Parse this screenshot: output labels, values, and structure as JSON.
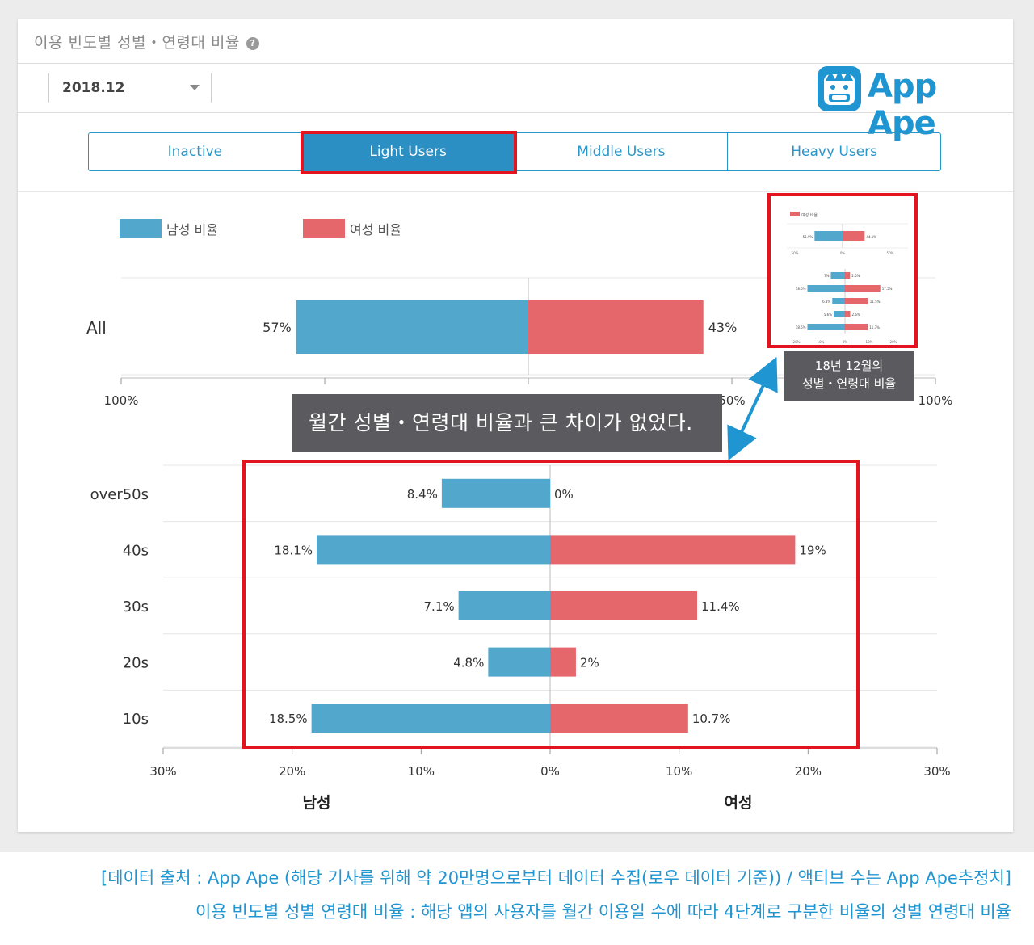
{
  "header": {
    "title": "이용 빈도별 성별・연령대 비율",
    "help_icon": "question-icon"
  },
  "toolbar": {
    "month": "2018.12"
  },
  "logo": {
    "text": "App Ape",
    "color": "#1f95d2"
  },
  "tabs": [
    "Inactive",
    "Light Users",
    "Middle Users",
    "Heavy Users"
  ],
  "active_tab": "Light Users",
  "legend": {
    "male": "남성 비율",
    "female": "여성 비율"
  },
  "colors": {
    "male": "#52a7cc",
    "female": "#e5676b",
    "highlight": "#e3141f",
    "accent": "#1f95d2"
  },
  "annotations": {
    "inset_label": [
      "18년 12월의",
      "성별・연령대 비율"
    ],
    "callout": "월간 성별・연령대 비율과 큰 차이가 없었다."
  },
  "chart_data": [
    {
      "type": "bar",
      "orientation": "horizontal-diverging",
      "categories": [
        "All"
      ],
      "series": [
        {
          "name": "남성 비율",
          "values": [
            57
          ],
          "labels": [
            "57%"
          ]
        },
        {
          "name": "여성 비율",
          "values": [
            43
          ],
          "labels": [
            "43%"
          ]
        }
      ],
      "xlim": [
        -100,
        100
      ],
      "ticks": [
        "100%",
        "50%",
        "0%",
        "50%",
        "100%"
      ]
    },
    {
      "type": "bar",
      "orientation": "horizontal-diverging",
      "categories": [
        "over50s",
        "40s",
        "30s",
        "20s",
        "10s"
      ],
      "series": [
        {
          "name": "남성",
          "values": [
            8.4,
            18.1,
            7.1,
            4.8,
            18.5
          ],
          "labels": [
            "8.4%",
            "18.1%",
            "7.1%",
            "4.8%",
            "18.5%"
          ]
        },
        {
          "name": "여성",
          "values": [
            0,
            19,
            11.4,
            2,
            10.7
          ],
          "labels": [
            "0%",
            "19%",
            "11.4%",
            "2%",
            "10.7%"
          ]
        }
      ],
      "xlim": [
        -30,
        30
      ],
      "ticks": [
        "30%",
        "20%",
        "10%",
        "0%",
        "10%",
        "20%",
        "30%"
      ],
      "side_labels": {
        "left": "남성",
        "right": "여성"
      }
    },
    {
      "type": "bar",
      "orientation": "horizontal-diverging",
      "inset": true,
      "categories": [
        "All"
      ],
      "series": [
        {
          "name": "남성",
          "values": [
            55.9
          ],
          "labels": [
            "55.9%"
          ]
        },
        {
          "name": "여성",
          "values": [
            44.1
          ],
          "labels": [
            "44.1%"
          ]
        }
      ],
      "ticks": [
        "50%",
        "0%",
        "50%"
      ]
    },
    {
      "type": "bar",
      "orientation": "horizontal-diverging",
      "inset": true,
      "categories": [
        "over50s",
        "40s",
        "30s",
        "20s",
        "10s"
      ],
      "series": [
        {
          "name": "남성",
          "values": [
            7,
            18.6,
            6.3,
            5.6,
            18.6
          ],
          "labels": [
            "7%",
            "18.6%",
            "6.3%",
            "5.6%",
            "18.6%"
          ]
        },
        {
          "name": "여성",
          "values": [
            2.5,
            17.5,
            11.5,
            2.6,
            11.3
          ],
          "labels": [
            "2.5%",
            "17.5%",
            "11.5%",
            "2.6%",
            "11.3%"
          ]
        }
      ],
      "ticks": [
        "20%",
        "10%",
        "0%",
        "10%",
        "20%"
      ]
    }
  ],
  "footer": {
    "line1": "[데이터 출처 : App Ape (해당 기사를 위해 약 20만명으로부터 데이터 수집(로우 데이터 기준)) / 액티브 수는 App Ape추정치]",
    "line2": "이용 빈도별 성별 연령대 비율 : 해당 앱의 사용자를 월간 이용일 수에 따라 4단계로 구분한 비율의 성별 연령대 비율"
  }
}
